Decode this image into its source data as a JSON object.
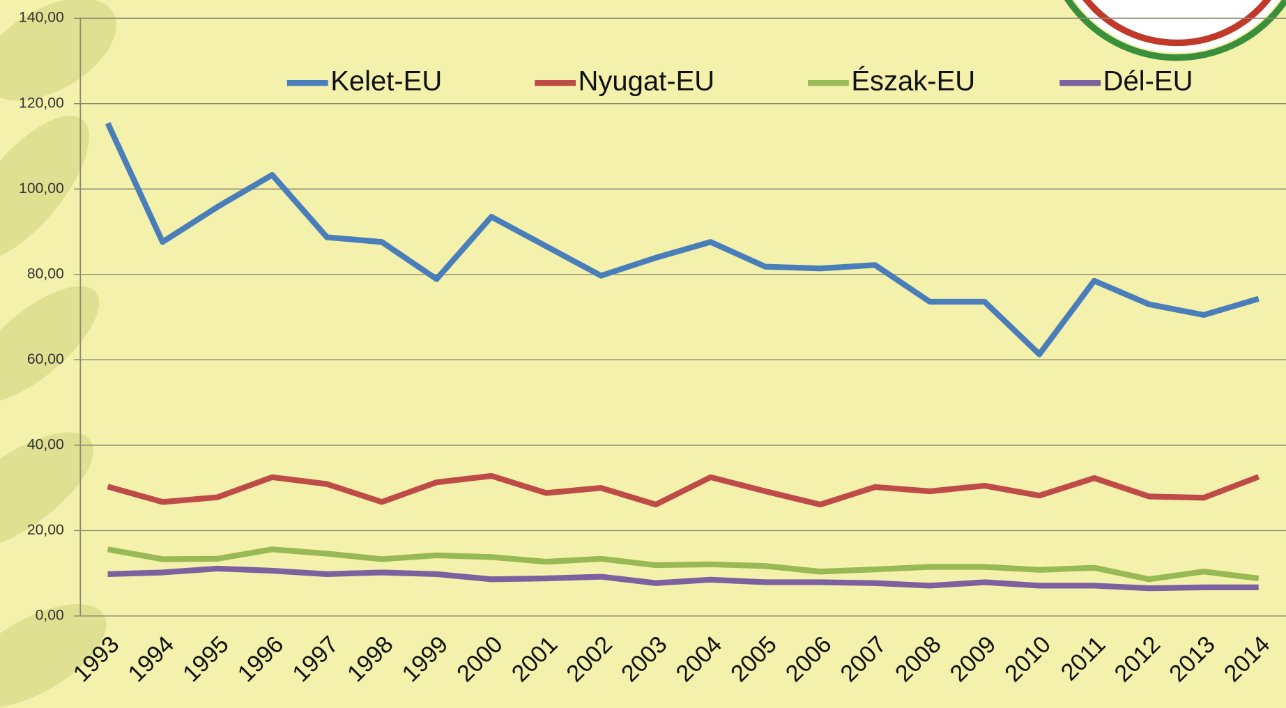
{
  "chart_data": {
    "type": "line",
    "categories": [
      "1993",
      "1994",
      "1995",
      "1996",
      "1997",
      "1998",
      "1999",
      "2000",
      "2001",
      "2002",
      "2003",
      "2004",
      "2005",
      "2006",
      "2007",
      "2008",
      "2009",
      "2010",
      "2011",
      "2012",
      "2013",
      "2014"
    ],
    "series": [
      {
        "name": "Kelet-EU",
        "color": "#4a7ebb",
        "values": [
          115.4,
          87.6,
          95.8,
          103.3,
          88.7,
          87.6,
          78.9,
          93.5,
          86.6,
          79.7,
          83.9,
          87.6,
          81.8,
          81.4,
          82.2,
          73.6,
          73.6,
          61.3,
          78.5,
          73.0,
          70.5,
          74.3
        ]
      },
      {
        "name": "Nyugat-EU",
        "color": "#be4b48",
        "values": [
          30.3,
          26.7,
          27.8,
          32.5,
          30.9,
          26.7,
          31.3,
          32.8,
          28.8,
          30.0,
          26.1,
          32.5,
          29.2,
          26.1,
          30.2,
          29.2,
          30.5,
          28.2,
          32.3,
          28.0,
          27.7,
          32.6
        ]
      },
      {
        "name": "Észak-EU",
        "color": "#98b954",
        "values": [
          15.6,
          13.3,
          13.4,
          15.6,
          14.6,
          13.3,
          14.2,
          13.8,
          12.7,
          13.4,
          11.9,
          12.1,
          11.7,
          10.4,
          10.9,
          11.5,
          11.5,
          10.8,
          11.3,
          8.6,
          10.4,
          8.8
        ]
      },
      {
        "name": "Dél-EU",
        "color": "#7d60a0",
        "values": [
          9.8,
          10.2,
          11.1,
          10.6,
          9.8,
          10.2,
          9.8,
          8.6,
          8.8,
          9.2,
          7.7,
          8.5,
          7.9,
          7.9,
          7.7,
          7.1,
          7.9,
          7.1,
          7.1,
          6.5,
          6.7,
          6.7
        ]
      }
    ],
    "ylim": [
      0,
      140
    ],
    "yticks": [
      {
        "value": 0,
        "label": "0,00"
      },
      {
        "value": 20,
        "label": "20,00"
      },
      {
        "value": 40,
        "label": "40,00"
      },
      {
        "value": 60,
        "label": "60,00"
      },
      {
        "value": 80,
        "label": "80,00"
      },
      {
        "value": 100,
        "label": "100,00"
      },
      {
        "value": 120,
        "label": "120,00"
      },
      {
        "value": 140,
        "label": "140,00"
      }
    ],
    "grid": true,
    "legend": "top"
  }
}
